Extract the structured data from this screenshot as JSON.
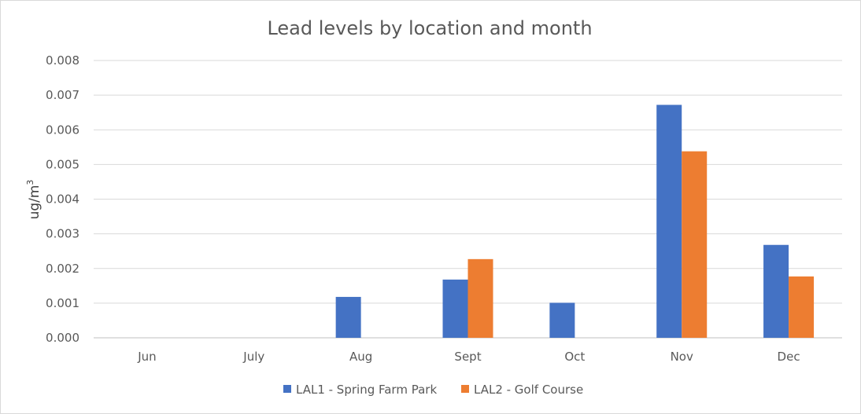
{
  "chart_data": {
    "type": "bar",
    "title": "Lead levels by location and month",
    "xlabel": "",
    "ylabel": "ug/m",
    "ylabel_superscript": "3",
    "categories": [
      "Jun",
      "July",
      "Aug",
      "Sept",
      "Oct",
      "Nov",
      "Dec"
    ],
    "series": [
      {
        "name": "LAL1 - Spring Farm Park",
        "color": "#4472c4",
        "values": [
          null,
          null,
          0.00118,
          0.00168,
          0.00101,
          0.00672,
          0.00268
        ]
      },
      {
        "name": "LAL2 - Golf Course",
        "color": "#ed7d31",
        "values": [
          null,
          null,
          null,
          0.00227,
          null,
          0.00538,
          0.00177
        ]
      }
    ],
    "ylim": [
      0,
      0.008
    ],
    "yticks": [
      "0.000",
      "0.001",
      "0.002",
      "0.003",
      "0.004",
      "0.005",
      "0.006",
      "0.007",
      "0.008"
    ],
    "grid": true,
    "legend": "bottom"
  }
}
